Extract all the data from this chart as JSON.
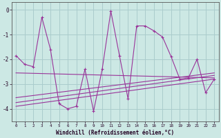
{
  "xlabel": "Windchill (Refroidissement éolien,°C)",
  "background_color": "#cce8e4",
  "grid_color": "#aacccc",
  "line_color": "#993399",
  "x_hours": [
    0,
    1,
    2,
    3,
    4,
    5,
    6,
    7,
    8,
    9,
    10,
    11,
    12,
    13,
    14,
    15,
    16,
    17,
    18,
    19,
    20,
    21,
    22,
    23
  ],
  "windchill": [
    -1.85,
    -2.2,
    -2.3,
    -0.3,
    -1.6,
    -3.8,
    -4.0,
    -3.9,
    -2.4,
    -4.1,
    -2.4,
    -0.05,
    -1.85,
    -3.6,
    -0.65,
    -0.65,
    -0.85,
    -1.1,
    -1.9,
    -2.8,
    -2.75,
    -2.0,
    -3.35,
    -2.8
  ],
  "ylim": [
    -4.5,
    0.3
  ],
  "yticks": [
    0,
    -1,
    -2,
    -3,
    -4
  ],
  "trend_lines": [
    {
      "x": [
        0,
        23
      ],
      "y": [
        -2.55,
        -2.75
      ]
    },
    {
      "x": [
        0,
        23
      ],
      "y": [
        -3.55,
        -2.55
      ]
    },
    {
      "x": [
        0,
        23
      ],
      "y": [
        -3.75,
        -2.65
      ]
    },
    {
      "x": [
        0,
        23
      ],
      "y": [
        -3.9,
        -2.8
      ]
    }
  ]
}
